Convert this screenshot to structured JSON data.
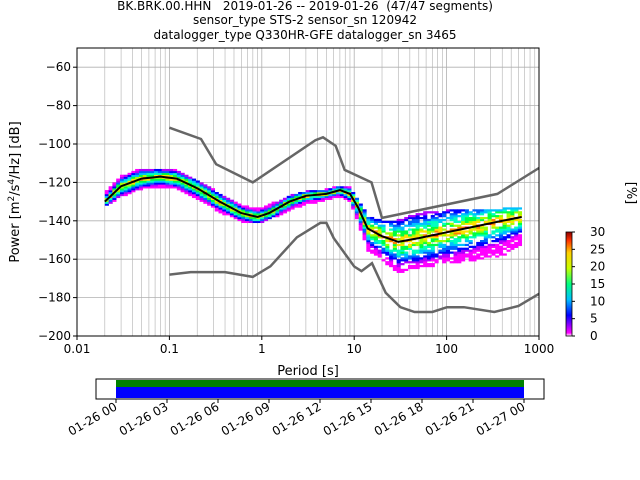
{
  "title_lines": [
    "BK.BRK.00.HHN   2019-01-26 -- 2019-01-26  (47/47 segments)",
    "sensor_type STS-2 sensor_sn 120942",
    "datalogger_type Q330HR-GFE datalogger_sn 3465"
  ],
  "colorbar": {
    "label": "[%]",
    "ticks": [
      "0",
      "5",
      "10",
      "15",
      "20",
      "25",
      "30"
    ]
  },
  "timeline": {
    "ticks": [
      "01-26 00",
      "01-26 03",
      "01-26 06",
      "01-26 09",
      "01-26 12",
      "01-26 15",
      "01-26 18",
      "01-26 21",
      "01-27 00"
    ]
  },
  "chart_data": {
    "type": "heatmap",
    "xlabel": "Period [s]",
    "ylabel": "Power [m²/s⁴/Hz] [dB]",
    "x_scale": "log",
    "xlim": [
      0.01,
      1000
    ],
    "ylim": [
      -200,
      -50
    ],
    "grid": true,
    "x_tick_labels": [
      "0.01",
      "0.1",
      "1",
      "10",
      "100",
      "1000"
    ],
    "y_tick_labels": [
      "−60",
      "−80",
      "−100",
      "−120",
      "−140",
      "−160",
      "−180",
      "−200"
    ],
    "colorbar_range_percent": [
      0,
      30
    ],
    "mode_curve": {
      "period": [
        0.02,
        0.03,
        0.05,
        0.08,
        0.12,
        0.2,
        0.35,
        0.6,
        0.9,
        1.2,
        2,
        3,
        5,
        7,
        9,
        11,
        14,
        20,
        30,
        50,
        100,
        200,
        400,
        650
      ],
      "power_db": [
        -130,
        -122,
        -118,
        -117,
        -118,
        -123,
        -130,
        -136,
        -138,
        -136,
        -130,
        -127,
        -126,
        -124,
        -126,
        -133,
        -144,
        -148,
        -151,
        -149,
        -146,
        -143,
        -140,
        -138
      ]
    },
    "nhnm": {
      "period": [
        0.1,
        0.22,
        0.32,
        0.8,
        3.8,
        4.6,
        6.3,
        7.9,
        15.4,
        20,
        354.8,
        1000
      ],
      "power_db": [
        -91.5,
        -97.4,
        -110.5,
        -120,
        -98,
        -96.5,
        -101,
        -113.5,
        -120,
        -138.5,
        -126,
        -112.5
      ]
    },
    "nlnm": {
      "period": [
        0.1,
        0.17,
        0.4,
        0.8,
        1.24,
        2.4,
        4.3,
        5,
        6,
        10,
        12,
        15.6,
        21.9,
        31.6,
        45,
        70,
        101,
        154,
        328,
        600,
        1000
      ],
      "power_db": [
        -168,
        -166.7,
        -166.7,
        -169.2,
        -163.7,
        -148.6,
        -141.1,
        -141.1,
        -149,
        -163.8,
        -166.2,
        -162.1,
        -177.5,
        -185,
        -187.5,
        -187.5,
        -185,
        -185,
        -187.5,
        -184.4,
        -178
      ]
    },
    "psd_segments": 47,
    "time_range": [
      "2019-01-26",
      "2019-01-26"
    ],
    "coverage_colors": [
      "#008000",
      "#0000ff"
    ],
    "spread_upper_db": [
      -126,
      -117,
      -113,
      -113,
      -114,
      -119,
      -126,
      -132,
      -134,
      -132,
      -127,
      -125,
      -124,
      -122,
      -123,
      -129,
      -138,
      -140,
      -140,
      -136,
      -135,
      -134,
      -134,
      -133
    ],
    "spread_lower_db": [
      -132,
      -127,
      -123,
      -122,
      -123,
      -128,
      -135,
      -140,
      -141,
      -139,
      -134,
      -131,
      -129,
      -127,
      -130,
      -140,
      -155,
      -160,
      -167,
      -164,
      -162,
      -160,
      -158,
      -152
    ]
  }
}
